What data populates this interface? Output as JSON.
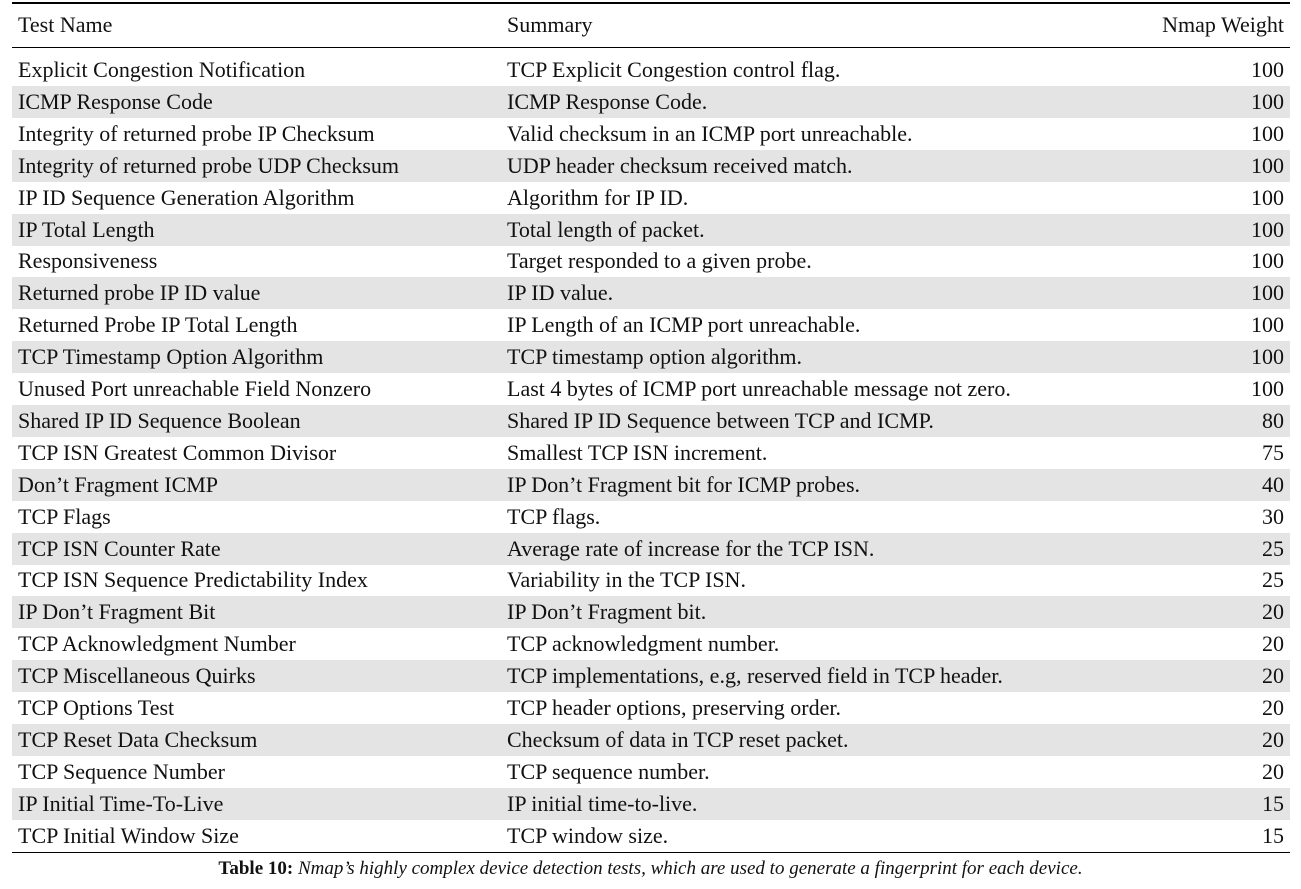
{
  "table": {
    "header": [
      "Test Name",
      "Summary",
      "Nmap Weight"
    ],
    "rows": [
      [
        "Explicit Congestion Notification",
        "TCP Explicit Congestion control flag.",
        100
      ],
      [
        "ICMP Response Code",
        "ICMP Response Code.",
        100
      ],
      [
        "Integrity of returned probe IP Checksum",
        "Valid checksum in an ICMP port unreachable.",
        100
      ],
      [
        "Integrity of returned probe UDP Checksum",
        "UDP header checksum received match.",
        100
      ],
      [
        "IP ID Sequence Generation Algorithm",
        "Algorithm for IP ID.",
        100
      ],
      [
        "IP Total Length",
        "Total length of packet.",
        100
      ],
      [
        "Responsiveness",
        "Target responded to a given probe.",
        100
      ],
      [
        "Returned probe IP ID value",
        "IP ID value.",
        100
      ],
      [
        "Returned Probe IP Total Length",
        "IP Length of an ICMP port unreachable.",
        100
      ],
      [
        "TCP Timestamp Option Algorithm",
        "TCP timestamp option algorithm.",
        100
      ],
      [
        "Unused Port unreachable Field Nonzero",
        "Last 4 bytes of ICMP port unreachable message not zero.",
        100
      ],
      [
        "Shared IP ID Sequence Boolean",
        "Shared IP ID Sequence between TCP and ICMP.",
        80
      ],
      [
        "TCP ISN Greatest Common Divisor",
        "Smallest TCP ISN increment.",
        75
      ],
      [
        "Don’t Fragment ICMP",
        "IP Don’t Fragment bit for ICMP probes.",
        40
      ],
      [
        "TCP Flags",
        "TCP flags.",
        30
      ],
      [
        "TCP ISN Counter Rate",
        "Average rate of increase for the TCP ISN.",
        25
      ],
      [
        "TCP ISN Sequence Predictability Index",
        "Variability in the TCP ISN.",
        25
      ],
      [
        "IP Don’t Fragment Bit",
        "IP Don’t Fragment bit.",
        20
      ],
      [
        "TCP Acknowledgment Number",
        "TCP acknowledgment number.",
        20
      ],
      [
        "TCP Miscellaneous Quirks",
        "TCP implementations, e.g, reserved field in TCP header.",
        20
      ],
      [
        "TCP Options Test",
        "TCP header options, preserving order.",
        20
      ],
      [
        "TCP Reset Data Checksum",
        "Checksum of data in TCP reset packet.",
        20
      ],
      [
        "TCP Sequence Number",
        "TCP sequence number.",
        20
      ],
      [
        "IP Initial Time-To-Live",
        "IP initial time-to-live.",
        15
      ],
      [
        "TCP Initial Window Size",
        "TCP window size.",
        15
      ]
    ]
  },
  "caption": {
    "label": "Table 10:",
    "text": "Nmap’s highly complex device detection tests, which are used to generate a fingerprint for each device."
  }
}
